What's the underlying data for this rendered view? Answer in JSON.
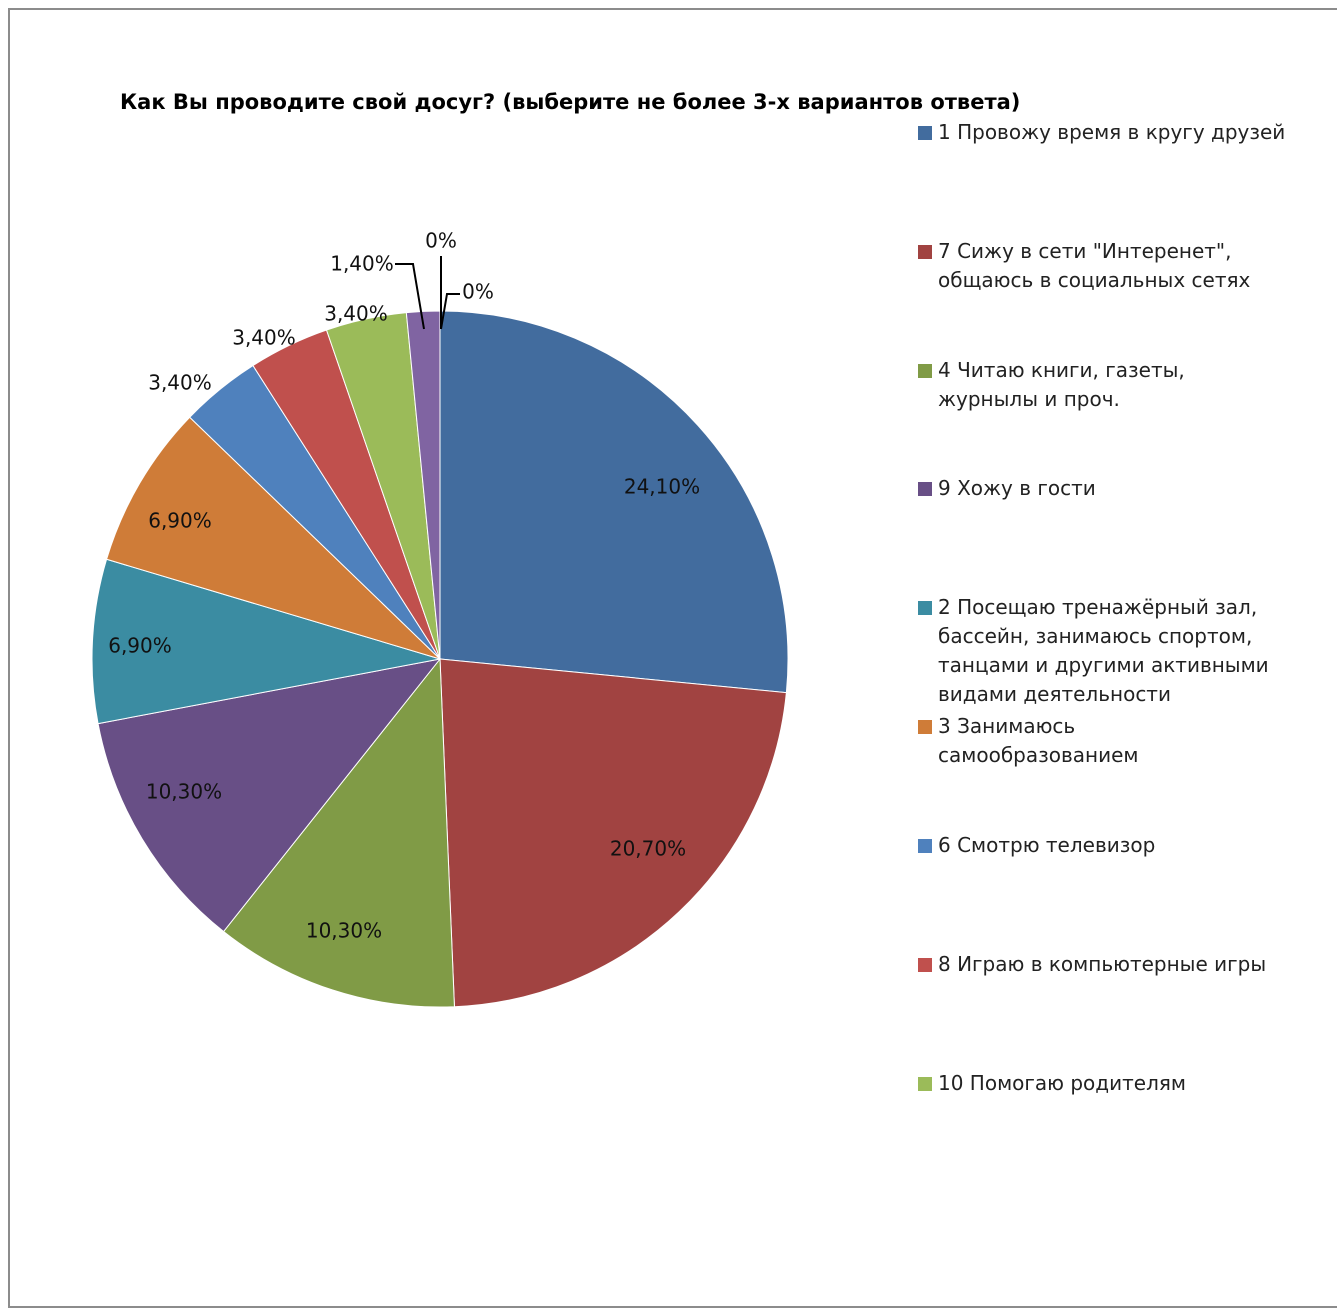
{
  "chart_data": {
    "type": "pie",
    "title": "Как Вы проводите свой досуг? (выберите не более 3-х вариантов ответа)",
    "legend_position": "right",
    "slices": [
      {
        "name": "1 Провожу время в кругу друзей",
        "value": 24.1,
        "label": "24,10%",
        "color": "#426c9e"
      },
      {
        "name": "7 Сижу в сети \"Интеренет\",\nобщаюсь в социальных сетях",
        "value": 20.7,
        "label": "20,70%",
        "color": "#a14341"
      },
      {
        "name": "4 Читаю книги, газеты,\nжурнылы и проч.",
        "value": 10.3,
        "label": "10,30%",
        "color": "#809b46"
      },
      {
        "name": "9 Хожу в гости",
        "value": 10.3,
        "label": "10,30%",
        "color": "#684f86"
      },
      {
        "name": "2 Посещаю тренажёрный зал,\nбассейн, занимаюсь спортом,\nтанцами и другими активными\nвидами деятельности",
        "value": 6.9,
        "label": "6,90%",
        "color": "#3b8ca2"
      },
      {
        "name": "3 Занимаюсь\nсамообразованием",
        "value": 6.9,
        "label": "6,90%",
        "color": "#cf7c38"
      },
      {
        "name": "6 Смотрю телевизор",
        "value": 3.4,
        "label": "3,40%",
        "color": "#4f81bd"
      },
      {
        "name": "8 Играю в компьютерные игры",
        "value": 3.4,
        "label": "3,40%",
        "color": "#c0504d"
      },
      {
        "name": "10 Помогаю родителям",
        "value": 3.4,
        "label": "3,40%",
        "color": "#9bbb59"
      },
      {
        "name": "",
        "value": 1.4,
        "label": "1,40%",
        "color": "#8064a2"
      },
      {
        "name": "",
        "value": 0,
        "label": "0%",
        "color": "#4bacc6"
      },
      {
        "name": "",
        "value": 0,
        "label": "0%",
        "color": "#f79646"
      }
    ]
  }
}
